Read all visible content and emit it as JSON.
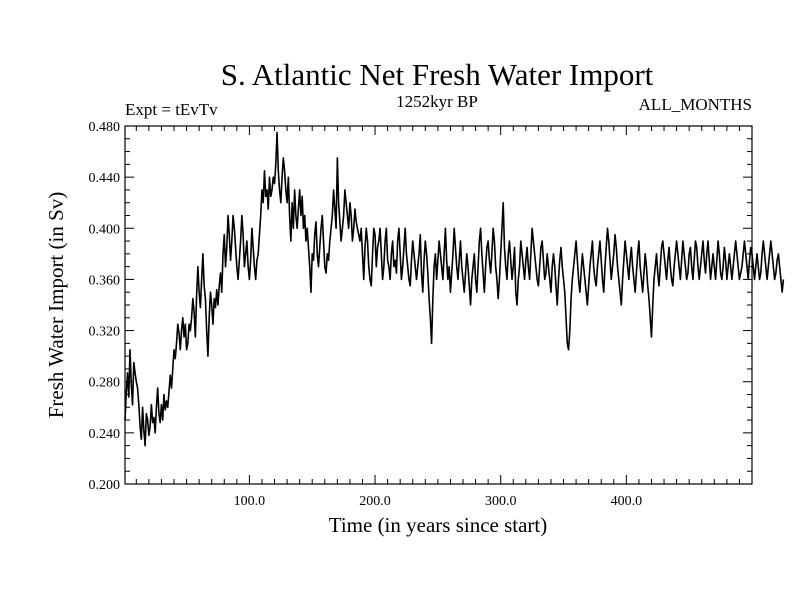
{
  "chart_data": {
    "type": "line",
    "title": "S. Atlantic Net Fresh Water Import",
    "subtitle": "1252kyr BP",
    "left_label": "Expt = tEvTv",
    "right_label": "ALL_MONTHS",
    "xlabel": "Time (in years since start)",
    "ylabel": "Fresh Water Import (in Sv)",
    "xlim": [
      1,
      500
    ],
    "ylim": [
      0.2,
      0.48
    ],
    "x_ticks": [
      100,
      200,
      300,
      400
    ],
    "x_tick_labels": [
      "100.0",
      "200.0",
      "300.0",
      "400.0"
    ],
    "y_ticks": [
      0.2,
      0.24,
      0.28,
      0.32,
      0.36,
      0.4,
      0.44,
      0.48
    ],
    "y_tick_labels": [
      "0.200",
      "0.240",
      "0.280",
      "0.320",
      "0.360",
      "0.400",
      "0.440",
      "0.480"
    ],
    "series": [
      {
        "name": "Fresh Water Import",
        "x_start": 1,
        "x_step": 1,
        "values": [
          0.25,
          0.271,
          0.287,
          0.268,
          0.305,
          0.278,
          0.262,
          0.295,
          0.287,
          0.28,
          0.275,
          0.262,
          0.245,
          0.235,
          0.26,
          0.242,
          0.23,
          0.255,
          0.25,
          0.238,
          0.245,
          0.262,
          0.248,
          0.252,
          0.24,
          0.26,
          0.275,
          0.255,
          0.248,
          0.262,
          0.25,
          0.27,
          0.258,
          0.265,
          0.26,
          0.272,
          0.285,
          0.275,
          0.29,
          0.305,
          0.298,
          0.31,
          0.325,
          0.318,
          0.305,
          0.32,
          0.33,
          0.315,
          0.325,
          0.305,
          0.31,
          0.325,
          0.32,
          0.33,
          0.345,
          0.335,
          0.315,
          0.348,
          0.37,
          0.35,
          0.338,
          0.36,
          0.38,
          0.355,
          0.345,
          0.32,
          0.3,
          0.33,
          0.35,
          0.34,
          0.325,
          0.345,
          0.338,
          0.352,
          0.34,
          0.355,
          0.365,
          0.35,
          0.38,
          0.395,
          0.37,
          0.385,
          0.41,
          0.395,
          0.375,
          0.39,
          0.41,
          0.4,
          0.385,
          0.37,
          0.36,
          0.375,
          0.39,
          0.41,
          0.395,
          0.37,
          0.38,
          0.39,
          0.37,
          0.36,
          0.375,
          0.4,
          0.385,
          0.37,
          0.36,
          0.375,
          0.38,
          0.395,
          0.41,
          0.43,
          0.42,
          0.445,
          0.425,
          0.43,
          0.415,
          0.44,
          0.425,
          0.43,
          0.44,
          0.435,
          0.45,
          0.475,
          0.445,
          0.43,
          0.42,
          0.44,
          0.455,
          0.445,
          0.43,
          0.42,
          0.44,
          0.41,
          0.39,
          0.42,
          0.4,
          0.43,
          0.41,
          0.4,
          0.415,
          0.43,
          0.41,
          0.425,
          0.4,
          0.41,
          0.39,
          0.4,
          0.385,
          0.37,
          0.35,
          0.38,
          0.375,
          0.395,
          0.405,
          0.38,
          0.37,
          0.385,
          0.4,
          0.41,
          0.39,
          0.37,
          0.365,
          0.38,
          0.375,
          0.39,
          0.4,
          0.41,
          0.43,
          0.415,
          0.4,
          0.455,
          0.42,
          0.405,
          0.39,
          0.4,
          0.41,
          0.43,
          0.42,
          0.41,
          0.4,
          0.42,
          0.41,
          0.39,
          0.4,
          0.415,
          0.405,
          0.4,
          0.395,
          0.39,
          0.4,
          0.38,
          0.36,
          0.385,
          0.4,
          0.39,
          0.37,
          0.36,
          0.355,
          0.38,
          0.4,
          0.395,
          0.37,
          0.385,
          0.39,
          0.4,
          0.38,
          0.36,
          0.37,
          0.39,
          0.4,
          0.375,
          0.37,
          0.36,
          0.38,
          0.39,
          0.37,
          0.375,
          0.365,
          0.39,
          0.4,
          0.38,
          0.36,
          0.37,
          0.385,
          0.4,
          0.38,
          0.37,
          0.36,
          0.355,
          0.375,
          0.39,
          0.38,
          0.37,
          0.36,
          0.37,
          0.38,
          0.395,
          0.365,
          0.35,
          0.375,
          0.39,
          0.38,
          0.365,
          0.345,
          0.33,
          0.31,
          0.345,
          0.37,
          0.38,
          0.36,
          0.375,
          0.39,
          0.38,
          0.37,
          0.36,
          0.38,
          0.4,
          0.375,
          0.36,
          0.37,
          0.35,
          0.365,
          0.38,
          0.4,
          0.385,
          0.37,
          0.36,
          0.375,
          0.39,
          0.37,
          0.36,
          0.35,
          0.365,
          0.38,
          0.37,
          0.355,
          0.34,
          0.36,
          0.37,
          0.38,
          0.36,
          0.35,
          0.37,
          0.39,
          0.4,
          0.38,
          0.365,
          0.35,
          0.37,
          0.385,
          0.39,
          0.375,
          0.365,
          0.38,
          0.4,
          0.39,
          0.37,
          0.36,
          0.345,
          0.36,
          0.38,
          0.4,
          0.42,
          0.385,
          0.37,
          0.36,
          0.38,
          0.39,
          0.375,
          0.36,
          0.37,
          0.385,
          0.35,
          0.34,
          0.36,
          0.37,
          0.39,
          0.38,
          0.37,
          0.36,
          0.375,
          0.385,
          0.37,
          0.36,
          0.38,
          0.4,
          0.39,
          0.38,
          0.37,
          0.36,
          0.355,
          0.37,
          0.385,
          0.39,
          0.375,
          0.36,
          0.365,
          0.38,
          0.37,
          0.36,
          0.35,
          0.37,
          0.38,
          0.37,
          0.355,
          0.34,
          0.36,
          0.375,
          0.385,
          0.37,
          0.36,
          0.35,
          0.33,
          0.31,
          0.305,
          0.32,
          0.345,
          0.36,
          0.37,
          0.38,
          0.39,
          0.375,
          0.36,
          0.35,
          0.365,
          0.38,
          0.37,
          0.36,
          0.35,
          0.34,
          0.355,
          0.37,
          0.38,
          0.39,
          0.37,
          0.36,
          0.355,
          0.37,
          0.38,
          0.39,
          0.375,
          0.36,
          0.35,
          0.37,
          0.385,
          0.4,
          0.39,
          0.375,
          0.36,
          0.37,
          0.38,
          0.395,
          0.385,
          0.37,
          0.36,
          0.35,
          0.34,
          0.36,
          0.375,
          0.39,
          0.38,
          0.37,
          0.36,
          0.375,
          0.385,
          0.37,
          0.36,
          0.35,
          0.365,
          0.38,
          0.39,
          0.37,
          0.36,
          0.35,
          0.365,
          0.38,
          0.37,
          0.355,
          0.345,
          0.33,
          0.315,
          0.34,
          0.36,
          0.37,
          0.38,
          0.365,
          0.355,
          0.37,
          0.385,
          0.39,
          0.38,
          0.37,
          0.36,
          0.375,
          0.385,
          0.37,
          0.36,
          0.355,
          0.37,
          0.38,
          0.39,
          0.38,
          0.37,
          0.36,
          0.375,
          0.39,
          0.38,
          0.37,
          0.36,
          0.365,
          0.38,
          0.385,
          0.37,
          0.36,
          0.375,
          0.39,
          0.385,
          0.37,
          0.36,
          0.37,
          0.38,
          0.39,
          0.375,
          0.365,
          0.38,
          0.39,
          0.375,
          0.36,
          0.37,
          0.38,
          0.37,
          0.36,
          0.375,
          0.39,
          0.38,
          0.365,
          0.36,
          0.37,
          0.385,
          0.375,
          0.36,
          0.37,
          0.38,
          0.37,
          0.36,
          0.37,
          0.38,
          0.39,
          0.38,
          0.37,
          0.36,
          0.365,
          0.37,
          0.38,
          0.39,
          0.38,
          0.37,
          0.36,
          0.375,
          0.385,
          0.38,
          0.37,
          0.36,
          0.37,
          0.38,
          0.37,
          0.36,
          0.365,
          0.38,
          0.39,
          0.38,
          0.37,
          0.36,
          0.37,
          0.38,
          0.39,
          0.38,
          0.37,
          0.36,
          0.365,
          0.375,
          0.38,
          0.37,
          0.36,
          0.35,
          0.36
        ]
      }
    ]
  }
}
